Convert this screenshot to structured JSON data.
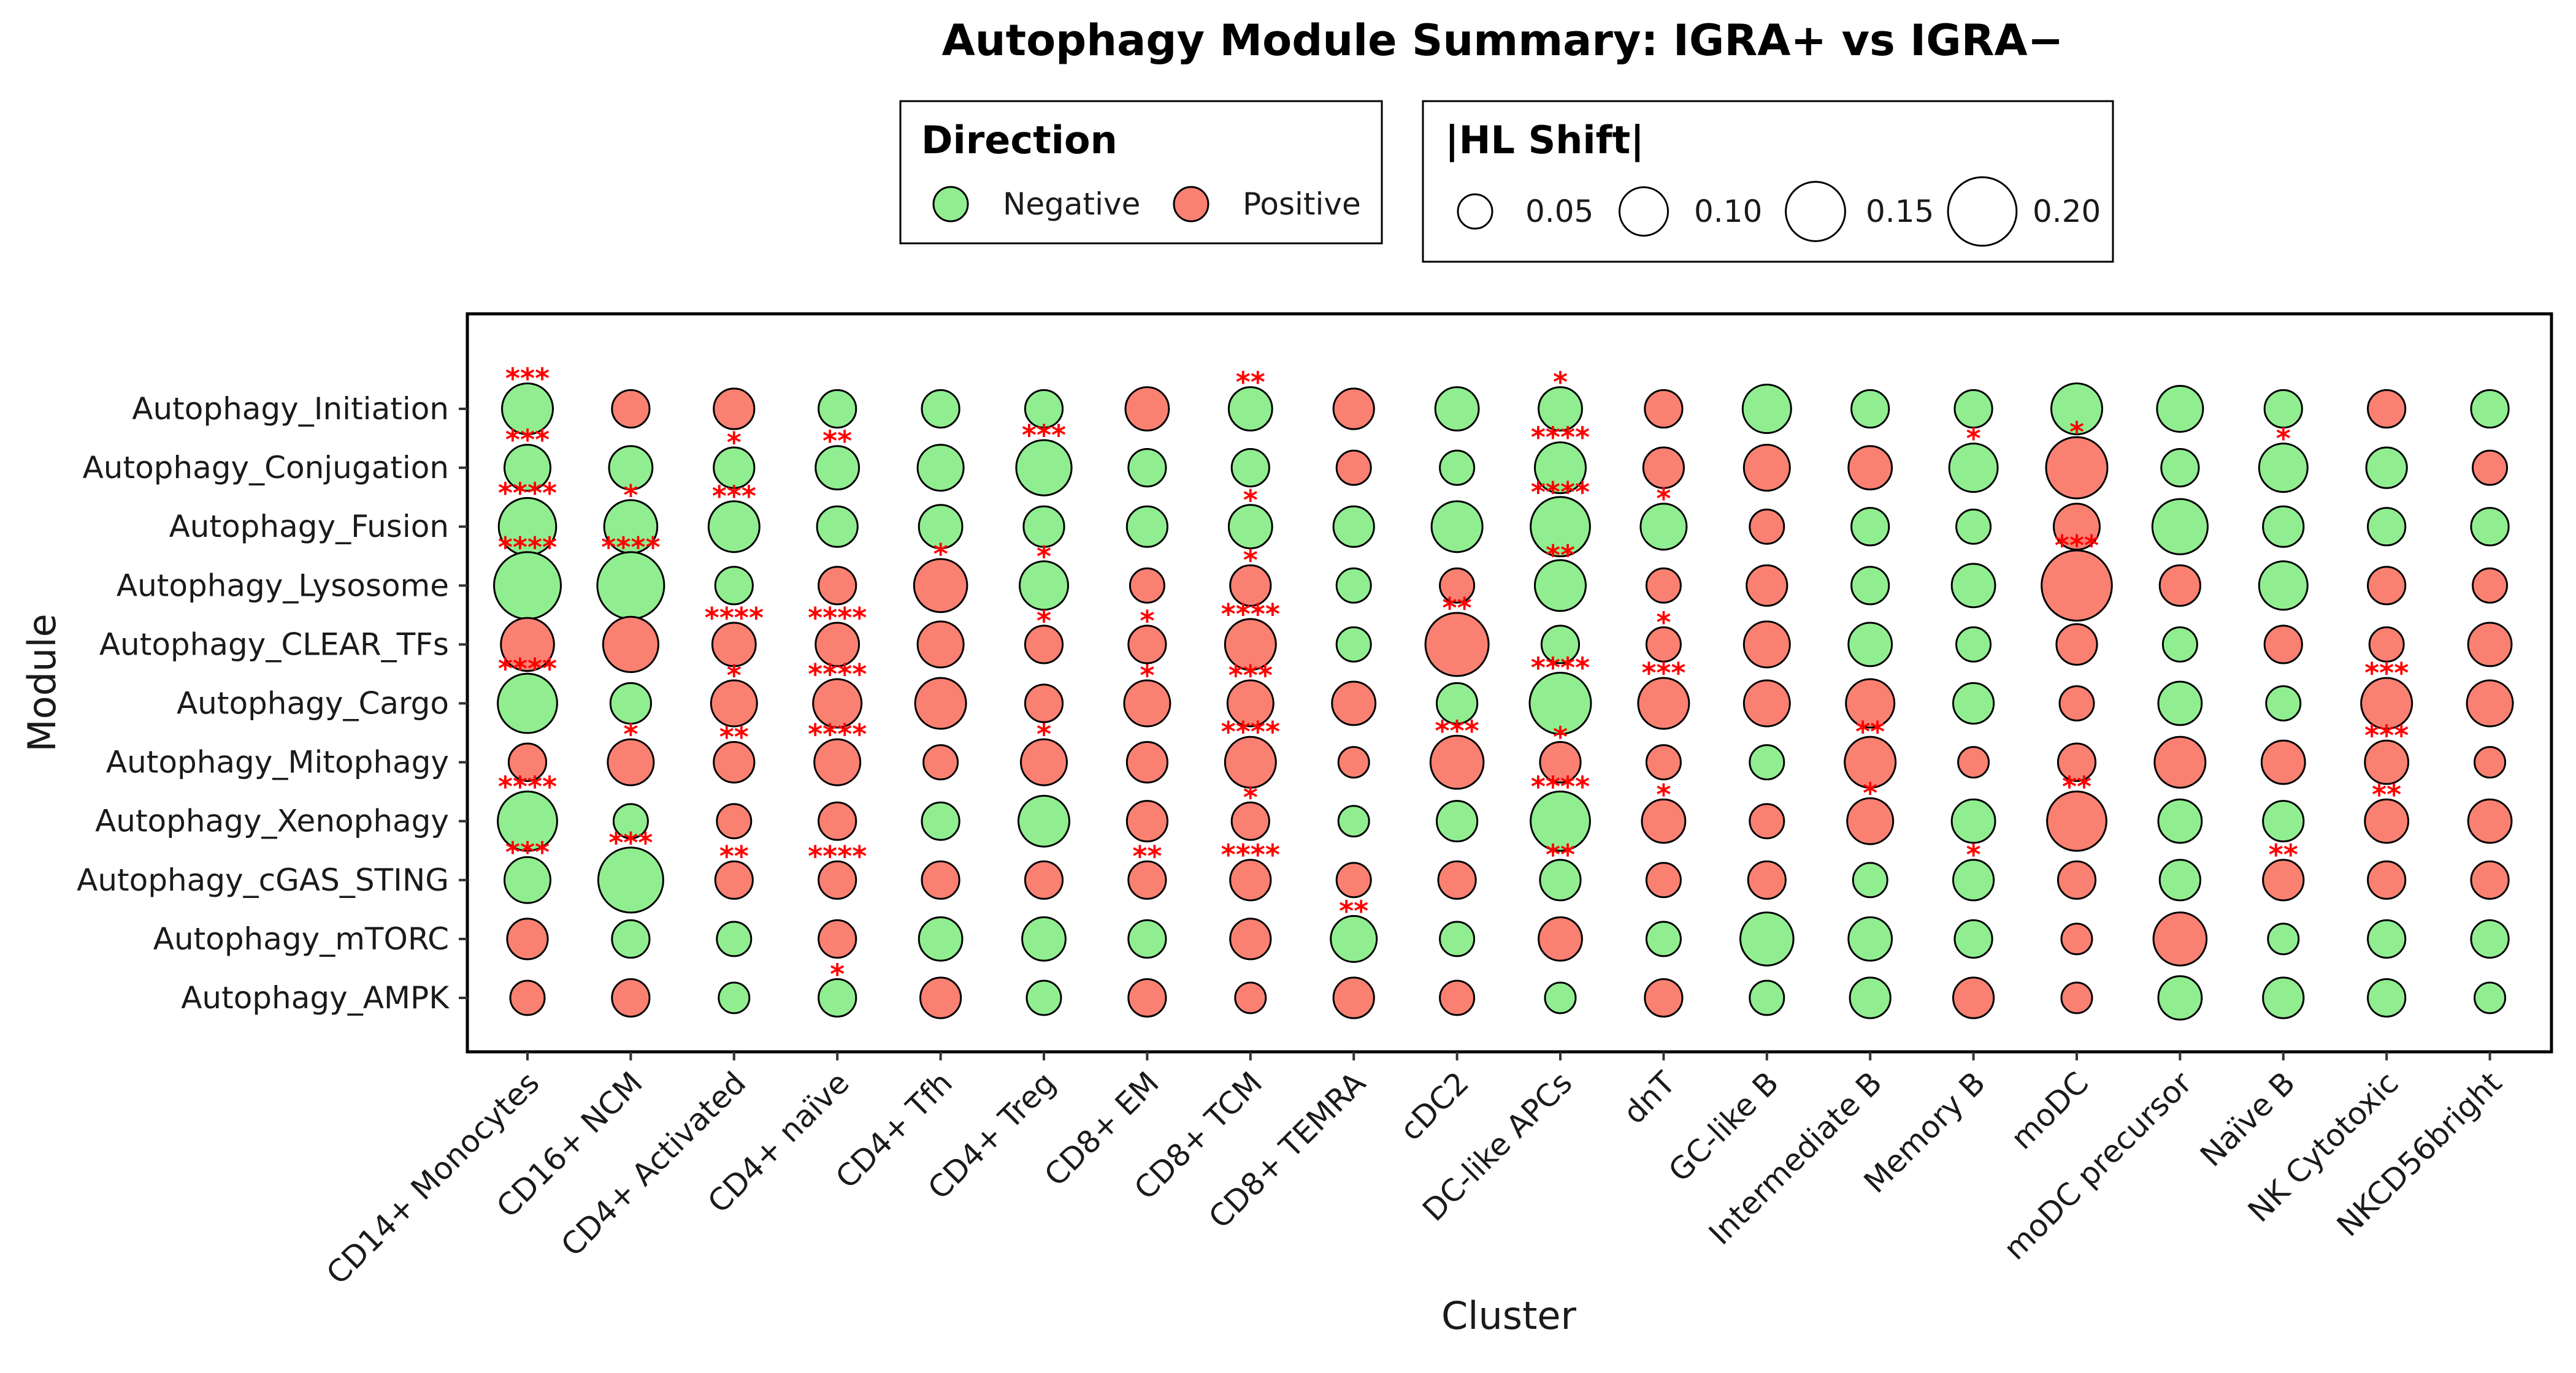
{
  "chart_data": {
    "type": "scatter",
    "subtype": "dot-plot",
    "title": "Autophagy Module Summary: IGRA+ vs IGRA−",
    "xlabel": "Cluster",
    "ylabel": "Module",
    "grid": false,
    "legend_position": "top",
    "x_categories": [
      "CD14+ Monocytes",
      "CD16+ NCM",
      "CD4+ Activated",
      "CD4+ naïve",
      "CD4+ Tfh",
      "CD4+ Treg",
      "CD8+ EM",
      "CD8+ TCM",
      "CD8+ TEMRA",
      "cDC2",
      "DC-like APCs",
      "dnT",
      "GC-like B",
      "Intermediate B",
      "Memory B",
      "moDC",
      "moDC precursor",
      "Naïve B",
      "NK Cytotoxic",
      "NKCD56bright"
    ],
    "y_categories": [
      "Autophagy_Initiation",
      "Autophagy_Conjugation",
      "Autophagy_Fusion",
      "Autophagy_Lysosome",
      "Autophagy_CLEAR_TFs",
      "Autophagy_Cargo",
      "Autophagy_Mitophagy",
      "Autophagy_Xenophagy",
      "Autophagy_cGAS_STING",
      "Autophagy_mTORC",
      "Autophagy_AMPK"
    ],
    "color_legend": {
      "title": "Direction",
      "entries": [
        {
          "label": "Negative",
          "color": "#90ee90"
        },
        {
          "label": "Positive",
          "color": "#fa8072"
        }
      ]
    },
    "size_legend": {
      "title": "|HL Shift|",
      "values": [
        0.05,
        0.1,
        0.15,
        0.2
      ],
      "labels": [
        "0.05",
        "0.10",
        "0.15",
        "0.20"
      ]
    },
    "direction_codes": {
      "N": "Negative",
      "P": "Positive"
    },
    "direction": [
      "NPPNNNPNPNNPNNNNNNPN",
      "NNNNNNNNPNNPPPNPNNNP",
      "NNNNNNNNNNNNPNNPNNNN",
      "NNNPPNPPNPNPPNNPPNPP",
      "PPPPPPPPNPNPPNNPNPPP",
      "NNPPPPPPPNNPPPNPNNPP",
      "PPPPPPPPPPPPNPPPPPPP",
      "NNPPNNPPNNNPPPNPNNPP",
      "NNPPPPPPPPNPPNNPNPPP",
      "PNNPNNNPNNPNNNNPPNNN",
      "PPNNPNPPPPNPNNPPNNNN"
    ],
    "hl_shift": [
      [
        0.11,
        0.06,
        0.07,
        0.06,
        0.06,
        0.06,
        0.08,
        0.08,
        0.07,
        0.08,
        0.08,
        0.06,
        0.1,
        0.06,
        0.06,
        0.11,
        0.09,
        0.06,
        0.06,
        0.06
      ],
      [
        0.09,
        0.08,
        0.07,
        0.08,
        0.09,
        0.13,
        0.06,
        0.06,
        0.05,
        0.05,
        0.11,
        0.07,
        0.09,
        0.08,
        0.1,
        0.16,
        0.06,
        0.1,
        0.07,
        0.05
      ],
      [
        0.14,
        0.12,
        0.11,
        0.07,
        0.08,
        0.07,
        0.07,
        0.08,
        0.07,
        0.11,
        0.15,
        0.09,
        0.05,
        0.06,
        0.05,
        0.09,
        0.13,
        0.07,
        0.06,
        0.06
      ],
      [
        0.19,
        0.19,
        0.06,
        0.06,
        0.12,
        0.1,
        0.05,
        0.07,
        0.05,
        0.05,
        0.11,
        0.05,
        0.07,
        0.06,
        0.08,
        0.21,
        0.07,
        0.1,
        0.06,
        0.05
      ],
      [
        0.12,
        0.13,
        0.08,
        0.08,
        0.09,
        0.06,
        0.06,
        0.11,
        0.05,
        0.17,
        0.06,
        0.05,
        0.09,
        0.08,
        0.05,
        0.07,
        0.05,
        0.06,
        0.05,
        0.08
      ],
      [
        0.15,
        0.07,
        0.09,
        0.1,
        0.11,
        0.06,
        0.09,
        0.09,
        0.08,
        0.07,
        0.16,
        0.11,
        0.09,
        0.1,
        0.07,
        0.05,
        0.08,
        0.05,
        0.11,
        0.09
      ],
      [
        0.06,
        0.09,
        0.07,
        0.09,
        0.05,
        0.09,
        0.07,
        0.11,
        0.04,
        0.12,
        0.07,
        0.05,
        0.05,
        0.11,
        0.04,
        0.06,
        0.11,
        0.08,
        0.08,
        0.04
      ],
      [
        0.15,
        0.05,
        0.05,
        0.06,
        0.06,
        0.11,
        0.07,
        0.06,
        0.04,
        0.07,
        0.15,
        0.08,
        0.05,
        0.09,
        0.08,
        0.15,
        0.08,
        0.07,
        0.08,
        0.08
      ],
      [
        0.09,
        0.18,
        0.06,
        0.06,
        0.06,
        0.06,
        0.06,
        0.07,
        0.05,
        0.06,
        0.07,
        0.05,
        0.06,
        0.05,
        0.07,
        0.06,
        0.07,
        0.07,
        0.06,
        0.06
      ],
      [
        0.07,
        0.06,
        0.05,
        0.06,
        0.08,
        0.08,
        0.06,
        0.07,
        0.09,
        0.05,
        0.08,
        0.05,
        0.12,
        0.08,
        0.06,
        0.04,
        0.12,
        0.04,
        0.06,
        0.06
      ],
      [
        0.05,
        0.06,
        0.04,
        0.06,
        0.07,
        0.05,
        0.06,
        0.04,
        0.07,
        0.05,
        0.04,
        0.06,
        0.05,
        0.07,
        0.07,
        0.04,
        0.08,
        0.07,
        0.06,
        0.04
      ]
    ],
    "significance": [
      [
        "***",
        "",
        "",
        "",
        "",
        "",
        "",
        "**",
        "",
        "",
        "*",
        "",
        "",
        "",
        "",
        "",
        "",
        "",
        "",
        ""
      ],
      [
        "***",
        "",
        "*",
        "**",
        "",
        "***",
        "",
        "",
        "",
        "",
        "****",
        "",
        "",
        "",
        "*",
        "*",
        "",
        "*",
        "",
        ""
      ],
      [
        "****",
        "*",
        "***",
        "",
        "",
        "",
        "",
        "*",
        "",
        "",
        "****",
        "*",
        "",
        "",
        "",
        "",
        "",
        "",
        "",
        ""
      ],
      [
        "****",
        "****",
        "",
        "",
        "*",
        "*",
        "",
        "*",
        "",
        "",
        "**",
        "",
        "",
        "",
        "",
        "***",
        "",
        "",
        "",
        ""
      ],
      [
        "",
        "",
        "****",
        "****",
        "",
        "*",
        "*",
        "****",
        "",
        "**",
        "",
        "*",
        "",
        "",
        "",
        "",
        "",
        "",
        "",
        ""
      ],
      [
        "****",
        "",
        "*",
        "****",
        "",
        "",
        "*",
        "***",
        "",
        "",
        "****",
        "***",
        "",
        "",
        "",
        "",
        "",
        "",
        "***",
        ""
      ],
      [
        "",
        "*",
        "**",
        "****",
        "",
        "*",
        "",
        "****",
        "",
        "***",
        "*",
        "",
        "",
        "**",
        "",
        "",
        "",
        "",
        "***",
        ""
      ],
      [
        "****",
        "",
        "",
        "",
        "",
        "",
        "",
        "*",
        "",
        "",
        "****",
        "*",
        "",
        "*",
        "",
        "**",
        "",
        "",
        "**",
        ""
      ],
      [
        "***",
        "***",
        "**",
        "****",
        "",
        "",
        "**",
        "****",
        "",
        "",
        "**",
        "",
        "",
        "",
        "*",
        "",
        "",
        "**",
        "",
        ""
      ],
      [
        "",
        "",
        "",
        "",
        "",
        "",
        "",
        "",
        "**",
        "",
        "",
        "",
        "",
        "",
        "",
        "",
        "",
        "",
        "",
        ""
      ],
      [
        "",
        "",
        "",
        "*",
        "",
        "",
        "",
        "",
        "",
        "",
        "",
        "",
        "",
        "",
        "",
        "",
        "",
        "",
        "",
        ""
      ]
    ]
  }
}
